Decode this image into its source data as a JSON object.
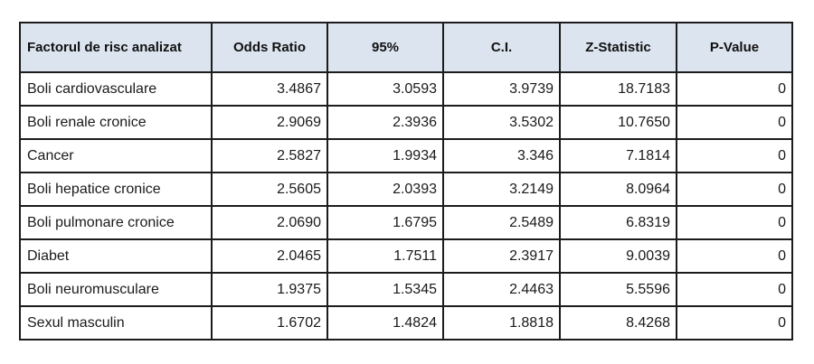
{
  "table": {
    "columns": {
      "factor": "Factorul de risc analizat",
      "odds_ratio": "Odds Ratio",
      "ci_95": "95%",
      "ci": "C.I.",
      "z_statistic": "Z-Statistic",
      "p_value": "P-Value"
    },
    "rows": [
      {
        "factor": "Boli cardiovasculare",
        "odds_ratio": "3.4867",
        "ci_low": "3.0593",
        "ci_high": "3.9739",
        "z_stat": "18.7183",
        "p_value": "0"
      },
      {
        "factor": "Boli renale cronice",
        "odds_ratio": "2.9069",
        "ci_low": "2.3936",
        "ci_high": "3.5302",
        "z_stat": "10.7650",
        "p_value": "0"
      },
      {
        "factor": "Cancer",
        "odds_ratio": "2.5827",
        "ci_low": "1.9934",
        "ci_high": "3.346",
        "z_stat": "7.1814",
        "p_value": "0"
      },
      {
        "factor": "Boli hepatice cronice",
        "odds_ratio": "2.5605",
        "ci_low": "2.0393",
        "ci_high": "3.2149",
        "z_stat": "8.0964",
        "p_value": "0"
      },
      {
        "factor": "Boli pulmonare cronice",
        "odds_ratio": "2.0690",
        "ci_low": "1.6795",
        "ci_high": "2.5489",
        "z_stat": "6.8319",
        "p_value": "0"
      },
      {
        "factor": "Diabet",
        "odds_ratio": "2.0465",
        "ci_low": "1.7511",
        "ci_high": "2.3917",
        "z_stat": "9.0039",
        "p_value": "0"
      },
      {
        "factor": "Boli neuromusculare",
        "odds_ratio": "1.9375",
        "ci_low": "1.5345",
        "ci_high": "2.4463",
        "z_stat": "5.5596",
        "p_value": "0"
      },
      {
        "factor": "Sexul masculin",
        "odds_ratio": "1.6702",
        "ci_low": "1.4824",
        "ci_high": "1.8818",
        "z_stat": "8.4268",
        "p_value": "0"
      }
    ]
  },
  "colors": {
    "header_bg": "#dce5ef",
    "odds_ratio_text": "#c00000",
    "border": "#1c1c1c"
  }
}
